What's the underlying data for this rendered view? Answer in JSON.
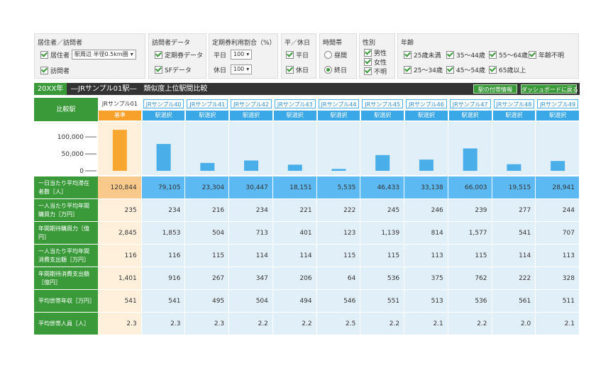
{
  "filters": [
    {
      "title": "居住者／訪問者",
      "items": [
        "居住者",
        "訪問者"
      ],
      "select": "駅周辺 半径0.5km圏"
    },
    {
      "title": "訪問者データ",
      "items": [
        "定期券データ",
        "SFデータ"
      ]
    },
    {
      "title": "定期券利用割合（%）",
      "items": [
        "平日",
        "休日"
      ],
      "selects": [
        "100",
        "100"
      ]
    },
    {
      "title": "平／休日",
      "items": [
        "平日",
        "休日"
      ]
    },
    {
      "title": "時間帯",
      "items": [
        "昼間",
        "終日"
      ]
    },
    {
      "title": "性別",
      "items": [
        "男性",
        "女性",
        "不明"
      ]
    },
    {
      "title": "年齢",
      "items": [
        "25歳未満",
        "35～44歳",
        "55～64歳",
        "年齢不明",
        "25～34歳",
        "45～54歳",
        "65歳以上"
      ]
    }
  ],
  "header": {
    "year": "20XX年",
    "title": "―JRサンプル01駅―　類似度上位駅間比較",
    "buttons": [
      "駅の付帯情報",
      "ダッシュボードに戻る"
    ]
  },
  "table": {
    "corner": "比較駅",
    "stations": [
      "JRサンプル01",
      "JRサンプル40",
      "JRサンプル41",
      "JRサンプル42",
      "JRサンプル43",
      "JRサンプル44",
      "JRサンプル45",
      "JRサンプル46",
      "JRサンプル47",
      "JRサンプル48",
      "JRサンプル49"
    ],
    "base_tag": "基準",
    "select_tag": "駅選択",
    "chart": {
      "ylim": [
        0,
        140000
      ],
      "yticks": [
        0,
        {
          "value": 50000,
          "label": "50,000"
        },
        {
          "value": 100000,
          "label": "100,000"
        }
      ],
      "color": "#4aaee9",
      "base_color": "#f7a630"
    },
    "rows": [
      {
        "label": "一日当たり平均滞在者数［人］",
        "values": [
          120844,
          79105,
          23304,
          30447,
          18151,
          5535,
          46433,
          33138,
          66003,
          19515,
          28941
        ],
        "value_labels": [
          "120,844",
          "79,105",
          "23,304",
          "30,447",
          "18,151",
          "5,535",
          "46,433",
          "33,138",
          "66,003",
          "19,515",
          "28,941"
        ]
      },
      {
        "label": "一人当たり平均年間購買力［万円］",
        "cells": [
          "235",
          "234",
          "216",
          "234",
          "221",
          "222",
          "245",
          "246",
          "239",
          "277",
          "244"
        ]
      },
      {
        "label": "年間期待購買力［億円］",
        "cells": [
          "2,845",
          "1,853",
          "504",
          "713",
          "401",
          "123",
          "1,139",
          "814",
          "1,577",
          "541",
          "707"
        ]
      },
      {
        "label": "一人当たり平均年間消費支出額［万円］",
        "cells": [
          "116",
          "116",
          "115",
          "114",
          "114",
          "115",
          "115",
          "113",
          "115",
          "114",
          "113"
        ]
      },
      {
        "label": "年間期待消費支出額［億円］",
        "cells": [
          "1,401",
          "916",
          "267",
          "347",
          "206",
          "64",
          "536",
          "375",
          "762",
          "222",
          "328"
        ]
      },
      {
        "label": "平均世帯年収［万円］",
        "cells": [
          "541",
          "541",
          "495",
          "504",
          "494",
          "546",
          "551",
          "513",
          "536",
          "561",
          "511"
        ]
      },
      {
        "label": "平均世帯人員［人］",
        "cells": [
          "2.3",
          "2.3",
          "2.3",
          "2.2",
          "2.2",
          "2.5",
          "2.2",
          "2.1",
          "2.2",
          "2.0",
          "2.1"
        ]
      }
    ]
  }
}
